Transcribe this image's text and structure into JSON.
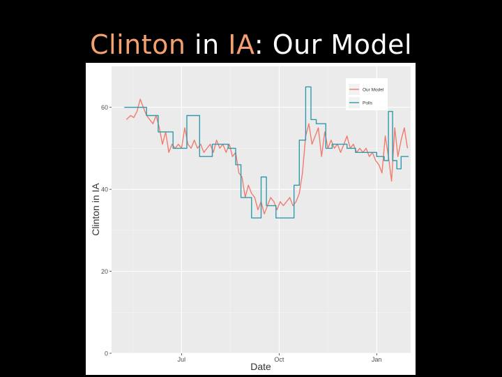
{
  "slide": {
    "title_part1": "Clinton",
    "title_part2": " in ",
    "title_part3": "IA",
    "title_part4": ": Our Model",
    "accent_color": "#f4a06f"
  },
  "chart_data": {
    "type": "line",
    "xlabel": "Date",
    "ylabel": "Clinton in IA",
    "ylim": [
      0,
      70
    ],
    "yticks": [
      0,
      20,
      40,
      60
    ],
    "ytick_labels": [
      "0",
      "20",
      "40",
      "60"
    ],
    "xlim": [
      "2015-04-26",
      "2016-02-02"
    ],
    "xticks": [
      "2015-07-01",
      "2015-10-01",
      "2016-01-01"
    ],
    "xtick_labels": [
      "Jul",
      "Oct",
      "Jan"
    ],
    "grid": true,
    "legend_position": "top-right",
    "series": [
      {
        "name": "Our Model",
        "color": "#f07b6e",
        "points": [
          [
            "2015-05-10",
            57
          ],
          [
            "2015-05-14",
            58
          ],
          [
            "2015-05-17",
            57.5
          ],
          [
            "2015-05-20",
            59
          ],
          [
            "2015-05-23",
            62
          ],
          [
            "2015-05-26",
            60
          ],
          [
            "2015-05-29",
            58
          ],
          [
            "2015-06-01",
            57
          ],
          [
            "2015-06-04",
            56
          ],
          [
            "2015-06-07",
            58
          ],
          [
            "2015-06-10",
            55
          ],
          [
            "2015-06-13",
            51
          ],
          [
            "2015-06-16",
            54
          ],
          [
            "2015-06-19",
            49
          ],
          [
            "2015-06-22",
            51
          ],
          [
            "2015-06-25",
            50
          ],
          [
            "2015-06-28",
            51
          ],
          [
            "2015-07-01",
            50
          ],
          [
            "2015-07-04",
            55
          ],
          [
            "2015-07-07",
            51
          ],
          [
            "2015-07-10",
            50
          ],
          [
            "2015-07-13",
            52
          ],
          [
            "2015-07-16",
            50
          ],
          [
            "2015-07-19",
            51
          ],
          [
            "2015-07-22",
            49
          ],
          [
            "2015-07-25",
            50
          ],
          [
            "2015-07-28",
            51
          ],
          [
            "2015-07-31",
            49
          ],
          [
            "2015-08-03",
            52
          ],
          [
            "2015-08-06",
            50
          ],
          [
            "2015-08-09",
            51
          ],
          [
            "2015-08-12",
            49
          ],
          [
            "2015-08-15",
            51
          ],
          [
            "2015-08-18",
            48
          ],
          [
            "2015-08-21",
            49
          ],
          [
            "2015-08-24",
            44
          ],
          [
            "2015-08-27",
            43
          ],
          [
            "2015-08-30",
            38
          ],
          [
            "2015-09-02",
            41
          ],
          [
            "2015-09-05",
            39
          ],
          [
            "2015-09-08",
            38
          ],
          [
            "2015-09-11",
            35
          ],
          [
            "2015-09-14",
            37
          ],
          [
            "2015-09-17",
            34
          ],
          [
            "2015-09-20",
            36
          ],
          [
            "2015-09-23",
            38
          ],
          [
            "2015-09-26",
            37
          ],
          [
            "2015-09-29",
            35
          ],
          [
            "2015-10-02",
            37
          ],
          [
            "2015-10-05",
            36
          ],
          [
            "2015-10-08",
            37
          ],
          [
            "2015-10-11",
            38
          ],
          [
            "2015-10-14",
            36
          ],
          [
            "2015-10-17",
            37
          ],
          [
            "2015-10-20",
            39
          ],
          [
            "2015-10-23",
            44
          ],
          [
            "2015-10-26",
            53
          ],
          [
            "2015-10-29",
            56
          ],
          [
            "2015-11-01",
            51
          ],
          [
            "2015-11-04",
            53
          ],
          [
            "2015-11-07",
            55
          ],
          [
            "2015-11-10",
            48
          ],
          [
            "2015-11-13",
            54
          ],
          [
            "2015-11-16",
            50
          ],
          [
            "2015-11-19",
            52
          ],
          [
            "2015-11-22",
            50
          ],
          [
            "2015-11-25",
            51
          ],
          [
            "2015-11-28",
            49
          ],
          [
            "2015-12-01",
            51
          ],
          [
            "2015-12-04",
            53
          ],
          [
            "2015-12-07",
            50
          ],
          [
            "2015-12-10",
            51
          ],
          [
            "2015-12-13",
            49
          ],
          [
            "2015-12-16",
            50
          ],
          [
            "2015-12-19",
            49
          ],
          [
            "2015-12-22",
            50
          ],
          [
            "2015-12-25",
            48
          ],
          [
            "2015-12-28",
            49
          ],
          [
            "2015-12-31",
            47
          ],
          [
            "2016-01-03",
            46
          ],
          [
            "2016-01-06",
            44
          ],
          [
            "2016-01-09",
            53
          ],
          [
            "2016-01-12",
            48
          ],
          [
            "2016-01-15",
            42
          ],
          [
            "2016-01-18",
            55
          ],
          [
            "2016-01-21",
            48
          ],
          [
            "2016-01-24",
            52
          ],
          [
            "2016-01-27",
            55
          ],
          [
            "2016-01-30",
            50
          ]
        ]
      },
      {
        "name": "Polls",
        "color": "#2f9aad",
        "points": [
          [
            "2015-05-08",
            60
          ],
          [
            "2015-05-29",
            60
          ],
          [
            "2015-05-29",
            58
          ],
          [
            "2015-06-09",
            58
          ],
          [
            "2015-06-09",
            54
          ],
          [
            "2015-06-23",
            54
          ],
          [
            "2015-06-23",
            50
          ],
          [
            "2015-07-06",
            50
          ],
          [
            "2015-07-06",
            58
          ],
          [
            "2015-07-18",
            58
          ],
          [
            "2015-07-18",
            48
          ],
          [
            "2015-07-30",
            48
          ],
          [
            "2015-07-30",
            51
          ],
          [
            "2015-08-14",
            51
          ],
          [
            "2015-08-14",
            50
          ],
          [
            "2015-08-21",
            50
          ],
          [
            "2015-08-21",
            46
          ],
          [
            "2015-08-26",
            46
          ],
          [
            "2015-08-26",
            38
          ],
          [
            "2015-09-05",
            38
          ],
          [
            "2015-09-05",
            33
          ],
          [
            "2015-09-14",
            33
          ],
          [
            "2015-09-14",
            43
          ],
          [
            "2015-09-19",
            43
          ],
          [
            "2015-09-19",
            36
          ],
          [
            "2015-09-28",
            36
          ],
          [
            "2015-09-28",
            33
          ],
          [
            "2015-10-15",
            33
          ],
          [
            "2015-10-15",
            41
          ],
          [
            "2015-10-20",
            41
          ],
          [
            "2015-10-20",
            52
          ],
          [
            "2015-10-26",
            52
          ],
          [
            "2015-10-26",
            65
          ],
          [
            "2015-10-31",
            65
          ],
          [
            "2015-10-31",
            57
          ],
          [
            "2015-11-05",
            57
          ],
          [
            "2015-11-05",
            56
          ],
          [
            "2015-11-14",
            56
          ],
          [
            "2015-11-14",
            50
          ],
          [
            "2015-11-20",
            50
          ],
          [
            "2015-11-20",
            51
          ],
          [
            "2015-12-04",
            51
          ],
          [
            "2015-12-04",
            50
          ],
          [
            "2015-12-12",
            50
          ],
          [
            "2015-12-12",
            49
          ],
          [
            "2016-01-01",
            49
          ],
          [
            "2016-01-01",
            48
          ],
          [
            "2016-01-08",
            48
          ],
          [
            "2016-01-08",
            47
          ],
          [
            "2016-01-12",
            47
          ],
          [
            "2016-01-12",
            59
          ],
          [
            "2016-01-16",
            59
          ],
          [
            "2016-01-16",
            47
          ],
          [
            "2016-01-20",
            47
          ],
          [
            "2016-01-20",
            45
          ],
          [
            "2016-01-24",
            45
          ],
          [
            "2016-01-24",
            48
          ],
          [
            "2016-01-31",
            48
          ]
        ]
      }
    ]
  }
}
